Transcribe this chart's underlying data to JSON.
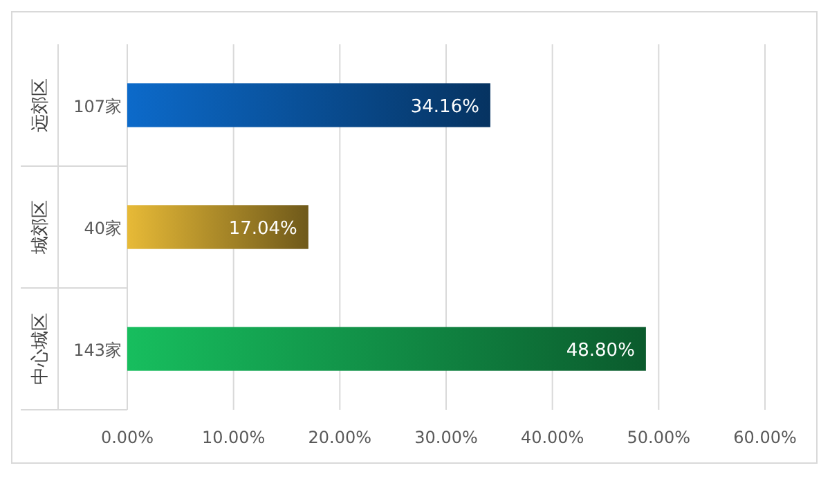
{
  "chart_data": {
    "type": "bar",
    "orientation": "horizontal",
    "categories": [
      "107家",
      "40家",
      "143家"
    ],
    "values": [
      34.16,
      17.04,
      48.8
    ],
    "value_labels": [
      "34.16%",
      "17.04%",
      "48.80%"
    ],
    "colors": [
      "#0a5cb0",
      "#c9a230",
      "#14a552"
    ],
    "annotations": [
      "远郊区",
      "城郊区",
      "中心城区"
    ],
    "xlim": [
      0,
      60
    ],
    "xticks": [
      {
        "value": 0,
        "label": "0.00%"
      },
      {
        "value": 10,
        "label": "10.00%"
      },
      {
        "value": 20,
        "label": "20.00%"
      },
      {
        "value": 30,
        "label": "30.00%"
      },
      {
        "value": 40,
        "label": "40.00%"
      },
      {
        "value": 50,
        "label": "50.00%"
      },
      {
        "value": 60,
        "label": "60.00%"
      }
    ],
    "grid": "x"
  }
}
